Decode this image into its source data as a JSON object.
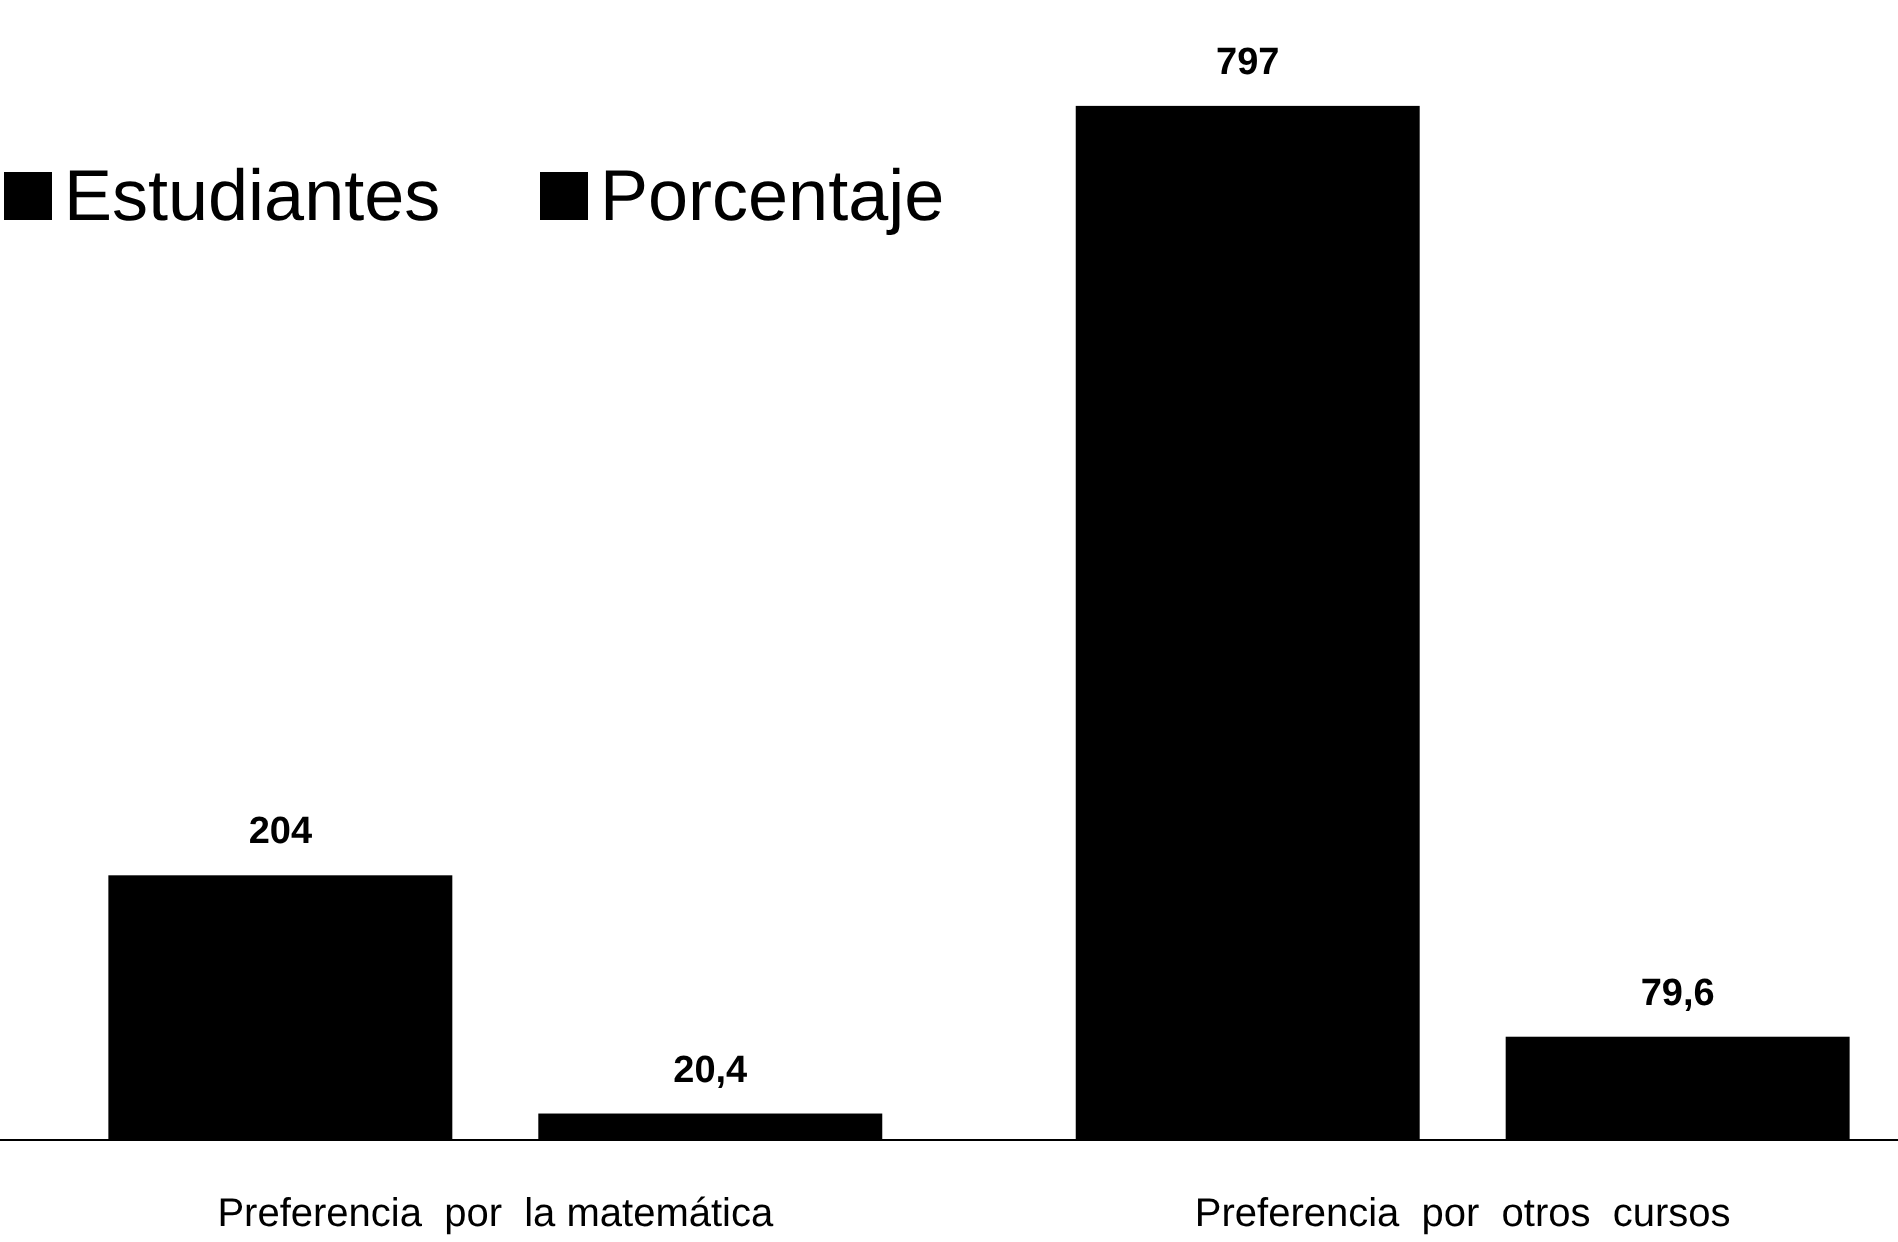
{
  "chart_data": {
    "type": "bar",
    "categories": [
      "Preferencia  por  la matemática",
      "Preferencia  por  otros  cursos"
    ],
    "series": [
      {
        "name": "Estudiantes",
        "color": "#000000",
        "values": [
          204,
          797
        ],
        "value_labels": [
          "204",
          "797"
        ]
      },
      {
        "name": "Porcentaje",
        "color": "#000000",
        "values": [
          20.4,
          79.6
        ],
        "value_labels": [
          "20,4",
          "79,6"
        ]
      }
    ],
    "ylim": [
      0,
      800
    ],
    "legend": "top left"
  }
}
